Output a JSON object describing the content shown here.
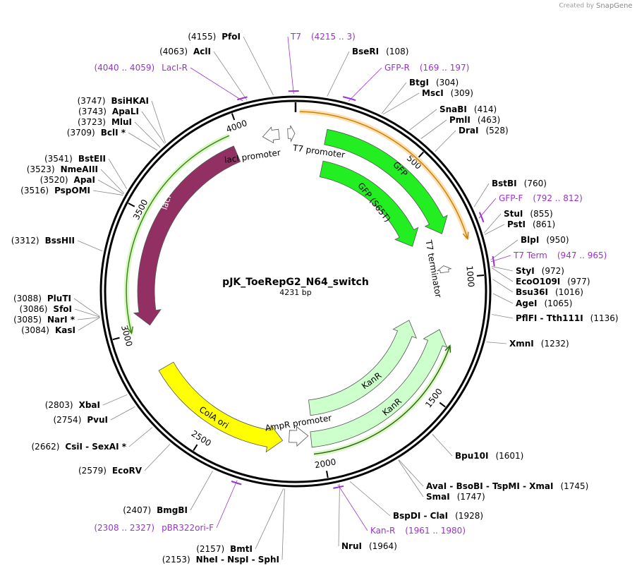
{
  "header": {
    "credit": "Created by",
    "brand": "SnapGene"
  },
  "map": {
    "name": "pJK_ToeRepG2_N64_switch",
    "size": "4231 bp",
    "ring_ticks": [
      "500",
      "1000",
      "1500",
      "2000",
      "2500",
      "3000",
      "3500",
      "4000"
    ]
  },
  "enzymes": [
    {
      "name": "PfoI",
      "position": "(4155)"
    },
    {
      "name": "AclI",
      "position": "(4063)"
    },
    {
      "name": "BsiHKAI",
      "position": "(3747)"
    },
    {
      "name": "ApaLI",
      "position": "(3743)"
    },
    {
      "name": "MluI",
      "position": "(3723)"
    },
    {
      "name": "BclI *",
      "position": "(3709)"
    },
    {
      "name": "BstEII",
      "position": "(3541)"
    },
    {
      "name": "NmeAIII",
      "position": "(3523)"
    },
    {
      "name": "ApaI",
      "position": "(3520)"
    },
    {
      "name": "PspOMI",
      "position": "(3516)"
    },
    {
      "name": "BssHII",
      "position": "(3312)"
    },
    {
      "name": "PluTI",
      "position": "(3088)"
    },
    {
      "name": "SfoI",
      "position": "(3086)"
    },
    {
      "name": "NarI *",
      "position": "(3085)"
    },
    {
      "name": "KasI",
      "position": "(3084)"
    },
    {
      "name": "XbaI",
      "position": "(2803)"
    },
    {
      "name": "PvuI",
      "position": "(2754)"
    },
    {
      "name": "CsiI  -  SexAI *",
      "position": "(2662)"
    },
    {
      "name": "EcoRV",
      "position": "(2579)"
    },
    {
      "name": "BmgBI",
      "position": "(2407)"
    },
    {
      "name": "BmtI",
      "position": "(2157)"
    },
    {
      "name": "NheI  -  NspI  -  SphI",
      "position": "(2153)"
    },
    {
      "name": "BseRI",
      "position": "(108)"
    },
    {
      "name": "BtgI",
      "position": "(304)"
    },
    {
      "name": "MscI",
      "position": "(309)"
    },
    {
      "name": "SnaBI",
      "position": "(414)"
    },
    {
      "name": "PmlI",
      "position": "(463)"
    },
    {
      "name": "DraI",
      "position": "(528)"
    },
    {
      "name": "BstBI",
      "position": "(760)"
    },
    {
      "name": "StuI",
      "position": "(855)"
    },
    {
      "name": "PstI",
      "position": "(861)"
    },
    {
      "name": "BlpI",
      "position": "(950)"
    },
    {
      "name": "StyI",
      "position": "(972)"
    },
    {
      "name": "EcoO109I",
      "position": "(977)"
    },
    {
      "name": "Bsu36I",
      "position": "(1016)"
    },
    {
      "name": "AgeI",
      "position": "(1065)"
    },
    {
      "name": "PflFI  -  Tth111I",
      "position": "(1136)"
    },
    {
      "name": "XmnI",
      "position": "(1232)"
    },
    {
      "name": "Bpu10I",
      "position": "(1601)"
    },
    {
      "name": "AvaI  -  BsoBI  -  TspMI  -  XmaI",
      "position": "(1745)"
    },
    {
      "name": "SmaI",
      "position": "(1747)"
    },
    {
      "name": "BspDI  -  ClaI",
      "position": "(1928)"
    },
    {
      "name": "NruI",
      "position": "(1964)"
    }
  ],
  "primers": [
    {
      "name": "T7",
      "range": "(4215 .. 3)"
    },
    {
      "name": "LacI-R",
      "range": "(4040 .. 4059)"
    },
    {
      "name": "GFP-R",
      "range": "(169 .. 197)"
    },
    {
      "name": "GFP-F",
      "range": "(792 .. 812)"
    },
    {
      "name": "T7 Term",
      "range": "(947 .. 965)"
    },
    {
      "name": "Kan-R",
      "range": "(1961 .. 1980)"
    },
    {
      "name": "pBR322ori-F",
      "range": "(2308 .. 2327)"
    }
  ],
  "features": [
    "GFP",
    "GFP (S65T)",
    "lacI",
    "KanR",
    "KanR",
    "ColA ori",
    "lacI promoter",
    "T7 promoter",
    "AmpR promoter",
    "T7 terminator"
  ]
}
